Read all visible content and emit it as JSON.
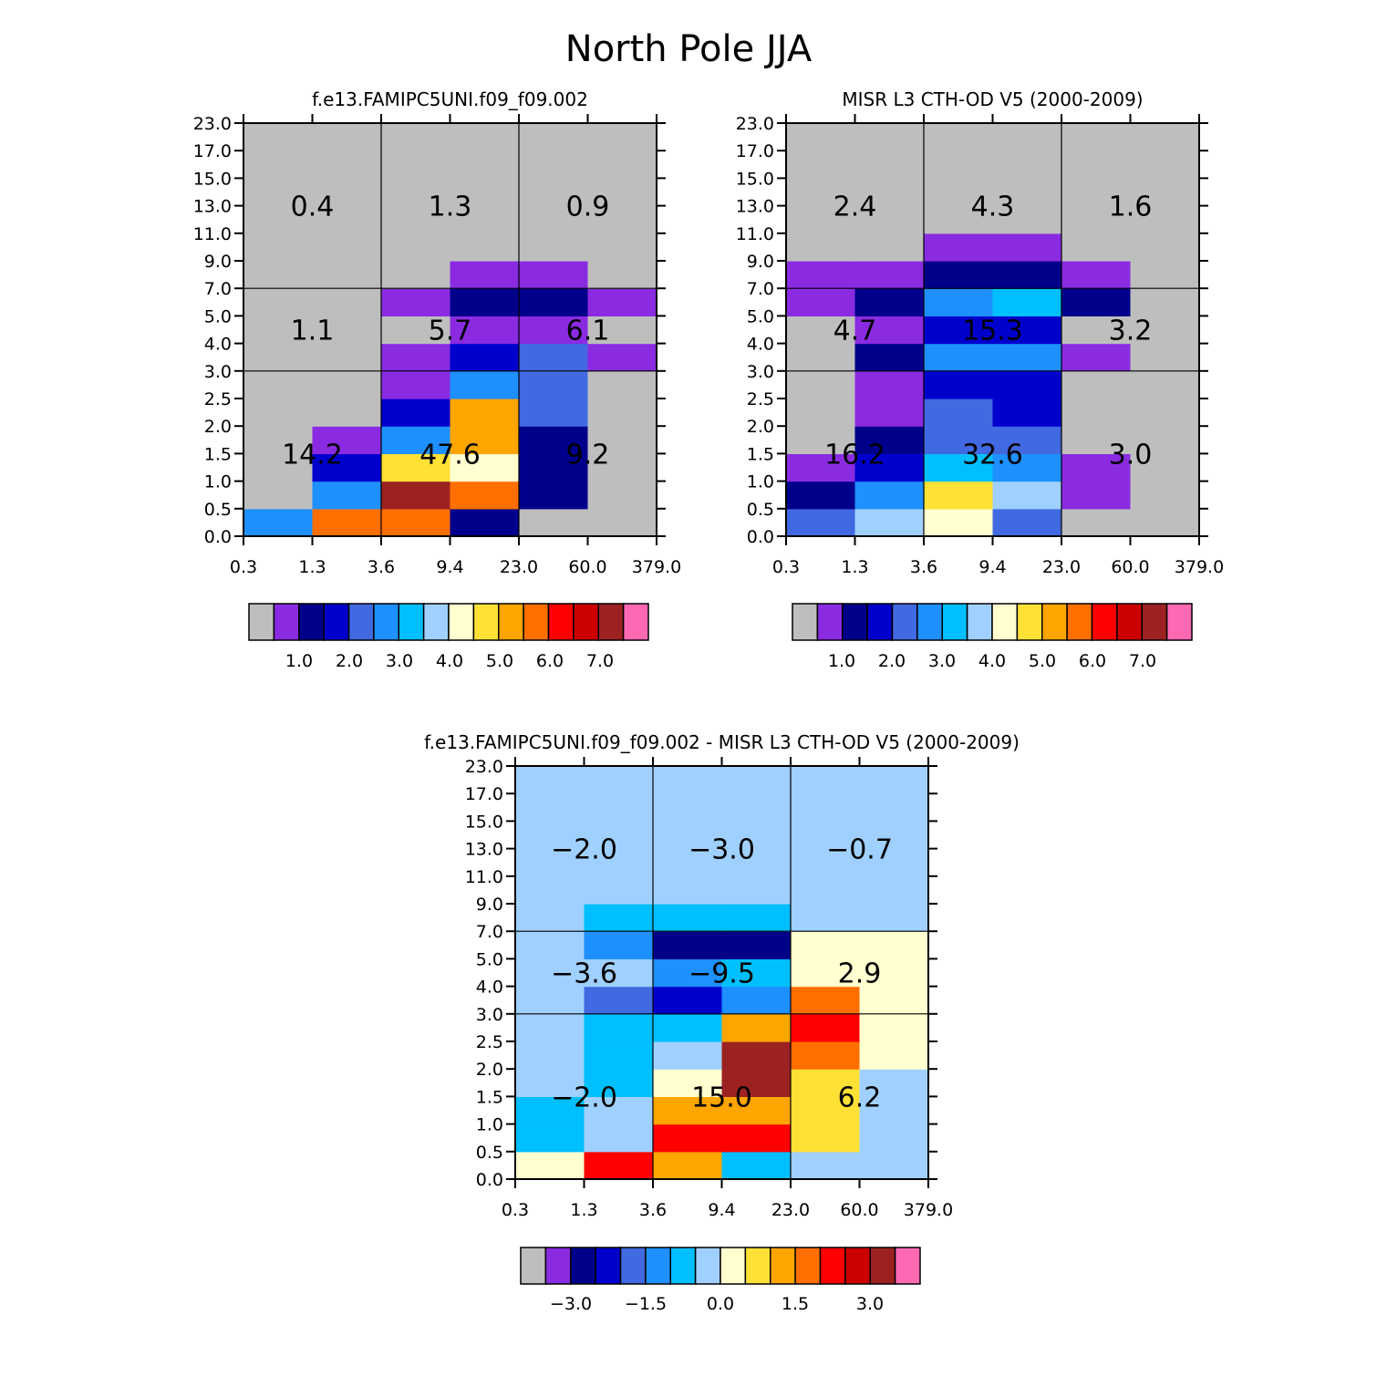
{
  "title": "North Pole JJA",
  "x_ticks": [
    "0.3",
    "1.3",
    "3.6",
    "9.4",
    "23.0",
    "60.0",
    "379.0"
  ],
  "y_ticks": [
    "0.0",
    "0.5",
    "1.0",
    "1.5",
    "2.0",
    "2.5",
    "3.0",
    "4.0",
    "5.0",
    "7.0",
    "9.0",
    "11.0",
    "13.0",
    "15.0",
    "17.0",
    "23.0"
  ],
  "palette": [
    "#bebebe",
    "#8a2be2",
    "#00008b",
    "#0000cd",
    "#4169e1",
    "#1e90ff",
    "#00bfff",
    "#a0d0ff",
    "#ffffd0",
    "#ffe135",
    "#ffa500",
    "#ff6f00",
    "#ff0000",
    "#cd0000",
    "#9c2222",
    "#ff69b4"
  ],
  "chart_data": [
    {
      "type": "heatmap",
      "title": "f.e13.FAMIPC5UNI.f09_f09.002",
      "x_edges": [
        0.3,
        1.3,
        3.6,
        9.4,
        23.0,
        60.0,
        379.0
      ],
      "y_edges": [
        0.0,
        0.5,
        1.0,
        1.5,
        2.0,
        2.5,
        3.0,
        4.0,
        5.0,
        7.0,
        9.0,
        11.0,
        13.0,
        15.0,
        17.0,
        23.0
      ],
      "cell_colors": [
        [
          5,
          11,
          11,
          2,
          0,
          0
        ],
        [
          0,
          5,
          14,
          11,
          2,
          0
        ],
        [
          0,
          3,
          9,
          8,
          2,
          0
        ],
        [
          0,
          1,
          5,
          10,
          2,
          0
        ],
        [
          0,
          0,
          3,
          10,
          4,
          0
        ],
        [
          0,
          0,
          1,
          5,
          4,
          0
        ],
        [
          0,
          0,
          1,
          3,
          4,
          1
        ],
        [
          0,
          0,
          0,
          1,
          1,
          0
        ],
        [
          0,
          0,
          1,
          2,
          2,
          1
        ],
        [
          0,
          0,
          0,
          1,
          1,
          0
        ],
        [
          0,
          0,
          0,
          0,
          0,
          0
        ],
        [
          0,
          0,
          0,
          0,
          0,
          0
        ],
        [
          0,
          0,
          0,
          0,
          0,
          0
        ],
        [
          0,
          0,
          0,
          0,
          0,
          0
        ],
        [
          0,
          0,
          0,
          0,
          0,
          0
        ]
      ],
      "group_values": [
        [
          "14.2",
          "47.6",
          "9.2"
        ],
        [
          "1.1",
          "5.7",
          "6.1"
        ],
        [
          "0.4",
          "1.3",
          "0.9"
        ]
      ],
      "colorbar_labels": [
        "1.0",
        "2.0",
        "3.0",
        "4.0",
        "5.0",
        "6.0",
        "7.0"
      ]
    },
    {
      "type": "heatmap",
      "title": "MISR L3 CTH-OD V5 (2000-2009)",
      "x_edges": [
        0.3,
        1.3,
        3.6,
        9.4,
        23.0,
        60.0,
        379.0
      ],
      "y_edges": [
        0.0,
        0.5,
        1.0,
        1.5,
        2.0,
        2.5,
        3.0,
        4.0,
        5.0,
        7.0,
        9.0,
        11.0,
        13.0,
        15.0,
        17.0,
        23.0
      ],
      "cell_colors": [
        [
          4,
          7,
          8,
          4,
          0,
          0
        ],
        [
          2,
          5,
          9,
          7,
          1,
          0
        ],
        [
          1,
          3,
          6,
          5,
          1,
          0
        ],
        [
          0,
          2,
          4,
          4,
          0,
          0
        ],
        [
          0,
          1,
          4,
          3,
          0,
          0
        ],
        [
          0,
          1,
          3,
          3,
          0,
          0
        ],
        [
          0,
          2,
          5,
          5,
          1,
          0
        ],
        [
          0,
          1,
          3,
          3,
          0,
          0
        ],
        [
          1,
          2,
          5,
          6,
          2,
          0
        ],
        [
          1,
          1,
          2,
          2,
          1,
          0
        ],
        [
          0,
          0,
          1,
          1,
          0,
          0
        ],
        [
          0,
          0,
          0,
          0,
          0,
          0
        ],
        [
          0,
          0,
          0,
          0,
          0,
          0
        ],
        [
          0,
          0,
          0,
          0,
          0,
          0
        ],
        [
          0,
          0,
          0,
          0,
          0,
          0
        ]
      ],
      "group_values": [
        [
          "16.2",
          "32.6",
          "3.0"
        ],
        [
          "4.7",
          "15.3",
          "3.2"
        ],
        [
          "2.4",
          "4.3",
          "1.6"
        ]
      ],
      "colorbar_labels": [
        "1.0",
        "2.0",
        "3.0",
        "4.0",
        "5.0",
        "6.0",
        "7.0"
      ]
    },
    {
      "type": "heatmap",
      "title": "f.e13.FAMIPC5UNI.f09_f09.002 - MISR L3 CTH-OD V5 (2000-2009)",
      "x_edges": [
        0.3,
        1.3,
        3.6,
        9.4,
        23.0,
        60.0,
        379.0
      ],
      "y_edges": [
        0.0,
        0.5,
        1.0,
        1.5,
        2.0,
        2.5,
        3.0,
        4.0,
        5.0,
        7.0,
        9.0,
        11.0,
        13.0,
        15.0,
        17.0,
        23.0
      ],
      "cell_colors": [
        [
          8,
          12,
          10,
          6,
          7,
          7
        ],
        [
          6,
          7,
          12,
          12,
          9,
          7
        ],
        [
          6,
          7,
          10,
          10,
          9,
          7
        ],
        [
          7,
          6,
          8,
          14,
          9,
          7
        ],
        [
          7,
          6,
          7,
          14,
          11,
          8
        ],
        [
          7,
          6,
          6,
          10,
          12,
          8
        ],
        [
          7,
          4,
          3,
          5,
          11,
          8
        ],
        [
          7,
          7,
          5,
          6,
          8,
          8
        ],
        [
          7,
          5,
          2,
          2,
          8,
          8
        ],
        [
          7,
          6,
          6,
          6,
          7,
          7
        ],
        [
          7,
          7,
          7,
          7,
          7,
          7
        ],
        [
          7,
          7,
          7,
          7,
          7,
          7
        ],
        [
          7,
          7,
          7,
          7,
          7,
          7
        ],
        [
          7,
          7,
          7,
          7,
          7,
          7
        ],
        [
          7,
          7,
          7,
          7,
          7,
          7
        ]
      ],
      "group_values": [
        [
          "−2.0",
          "15.0",
          "6.2"
        ],
        [
          "−3.6",
          "−9.5",
          "2.9"
        ],
        [
          "−2.0",
          "−3.0",
          "−0.7"
        ]
      ],
      "colorbar_labels": [
        "−3.0",
        "−1.5",
        "0.0",
        "1.5",
        "3.0"
      ]
    }
  ]
}
